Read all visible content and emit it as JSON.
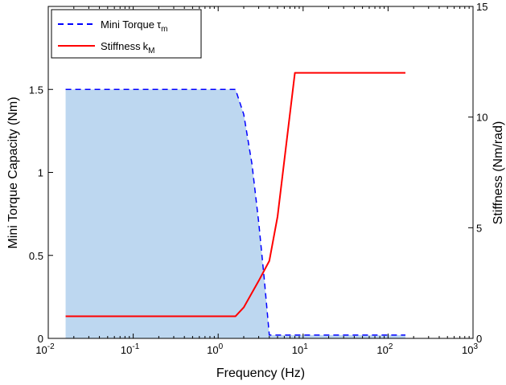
{
  "chart_data": {
    "type": "line",
    "xlabel": "Frequency (Hz)",
    "ylabel_left": "Mini Torque Capacity (Nm)",
    "ylabel_right": "Stiffness (Nm/rad)",
    "x_scale": "log",
    "xlim": [
      0.01,
      1000
    ],
    "ylim_left": [
      0,
      2
    ],
    "ylim_right": [
      0,
      15
    ],
    "x_ticks": [
      {
        "value": 0.01,
        "base": "10",
        "exp": "-2"
      },
      {
        "value": 0.1,
        "base": "10",
        "exp": "-1"
      },
      {
        "value": 1,
        "base": "10",
        "exp": "0"
      },
      {
        "value": 10,
        "base": "10",
        "exp": "1"
      },
      {
        "value": 100,
        "base": "10",
        "exp": "2"
      },
      {
        "value": 1000,
        "base": "10",
        "exp": "3"
      }
    ],
    "y_ticks_left": [
      {
        "value": 0,
        "label": "0"
      },
      {
        "value": 0.5,
        "label": "0.5"
      },
      {
        "value": 1,
        "label": "1"
      },
      {
        "value": 1.5,
        "label": "1.5"
      }
    ],
    "y_ticks_right": [
      {
        "value": 0,
        "label": "0"
      },
      {
        "value": 5,
        "label": "5"
      },
      {
        "value": 10,
        "label": "10"
      },
      {
        "value": 15,
        "label": "15"
      }
    ],
    "grid": false,
    "legend_position": "top-left",
    "series": [
      {
        "name": "Mini Torque",
        "name_symbol": "τ",
        "name_sub": "m",
        "axis": "left",
        "style": "dashed",
        "color": "#0000ff",
        "fill": "#bdd7f0",
        "x": [
          0.016,
          1.6,
          2.0,
          2.5,
          3.0,
          3.5,
          4.0,
          10,
          30,
          160
        ],
        "y": [
          1.5,
          1.5,
          1.35,
          1.05,
          0.7,
          0.35,
          0.02,
          0.02,
          0.02,
          0.02
        ]
      },
      {
        "name": "Stiffness",
        "name_symbol": "k",
        "name_sub": "M",
        "axis": "right",
        "style": "solid",
        "color": "#ff0000",
        "x": [
          0.016,
          1.6,
          2.0,
          3.0,
          4.0,
          5.0,
          8.0,
          30,
          160
        ],
        "y": [
          1.0,
          1.0,
          1.4,
          2.6,
          3.5,
          5.5,
          12.0,
          12.0,
          12.0
        ]
      }
    ]
  }
}
